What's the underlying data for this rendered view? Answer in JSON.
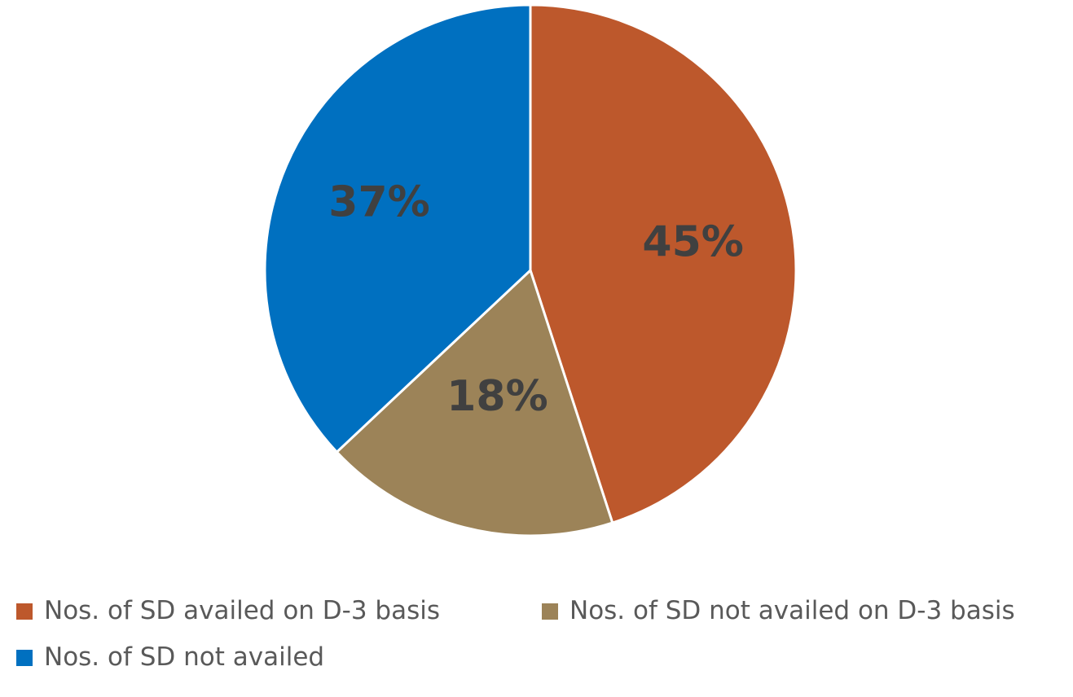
{
  "chart_data": {
    "type": "pie",
    "title": "",
    "slices": [
      {
        "label": "Nos. of SD availed on D-3 basis",
        "value": 45,
        "display": "45%",
        "color": "#bd582c"
      },
      {
        "label": "Nos. of SD not availed on D-3 basis",
        "value": 18,
        "display": "18%",
        "color": "#9c8358"
      },
      {
        "label": "Nos. of SD not availed",
        "value": 37,
        "display": "37%",
        "color": "#0070c0"
      }
    ],
    "start_angle": "12 o'clock",
    "direction": "clockwise",
    "legend_position": "bottom"
  }
}
